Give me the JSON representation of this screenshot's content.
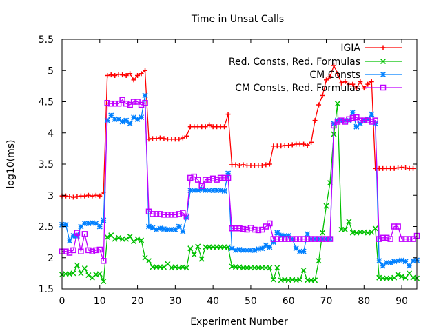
{
  "chart_data": {
    "type": "line",
    "title": "Time in Unsat Calls",
    "xlabel": "Experiment Number",
    "ylabel": "log10(ms)",
    "xlim": [
      0,
      94
    ],
    "ylim": [
      1.5,
      5.5
    ],
    "xticks": [
      0,
      10,
      20,
      30,
      40,
      50,
      60,
      70,
      80,
      90
    ],
    "yticks": [
      1.5,
      2,
      2.5,
      3,
      3.5,
      4,
      4.5,
      5,
      5.5
    ],
    "xtick_labels": [
      "0",
      "10",
      "20",
      "30",
      "40",
      "50",
      "60",
      "70",
      "80",
      "90"
    ],
    "ytick_labels": [
      "1.5",
      "2",
      "2.5",
      "3",
      "3.5",
      "4",
      "4.5",
      "5",
      "5.5"
    ],
    "grid": false,
    "legend_position": "top-right",
    "series": [
      {
        "name": "IGIA",
        "color": "#ff0000",
        "marker": "plus",
        "values": [
          2.99,
          2.99,
          2.98,
          2.97,
          2.98,
          2.99,
          2.99,
          3.0,
          2.99,
          3.0,
          2.99,
          3.05,
          4.92,
          4.93,
          4.92,
          4.94,
          4.93,
          4.92,
          4.95,
          4.85,
          4.92,
          4.95,
          5.0,
          3.9,
          3.91,
          3.91,
          3.92,
          3.91,
          3.9,
          3.9,
          3.9,
          3.9,
          3.92,
          3.95,
          4.1,
          4.1,
          4.1,
          4.1,
          4.1,
          4.13,
          4.1,
          4.1,
          4.1,
          4.1,
          4.3,
          3.49,
          3.49,
          3.48,
          3.49,
          3.48,
          3.48,
          3.48,
          3.48,
          3.48,
          3.49,
          3.5,
          3.79,
          3.79,
          3.79,
          3.8,
          3.8,
          3.81,
          3.82,
          3.82,
          3.82,
          3.8,
          3.85,
          4.2,
          4.45,
          4.6,
          4.85,
          4.9,
          5.08,
          4.95,
          4.8,
          4.82,
          4.78,
          4.78,
          4.72,
          4.82,
          4.72,
          4.78,
          4.82,
          3.43,
          3.43,
          3.43,
          3.43,
          3.43,
          3.43,
          3.44,
          3.45,
          3.44,
          3.43,
          3.43
        ]
      },
      {
        "name": "Red. Consts, Red. Formulas",
        "color": "#00c000",
        "marker": "x",
        "values": [
          1.73,
          1.74,
          1.74,
          1.75,
          1.88,
          1.75,
          1.83,
          1.72,
          1.68,
          1.73,
          1.74,
          1.62,
          2.33,
          2.36,
          2.3,
          2.32,
          2.3,
          2.3,
          2.34,
          2.26,
          2.3,
          2.28,
          2.0,
          1.95,
          1.85,
          1.85,
          1.85,
          1.85,
          1.9,
          1.84,
          1.85,
          1.84,
          1.85,
          1.84,
          2.15,
          2.05,
          2.18,
          1.98,
          2.17,
          2.17,
          2.17,
          2.17,
          2.17,
          2.17,
          2.17,
          1.86,
          1.85,
          1.85,
          1.84,
          1.84,
          1.84,
          1.84,
          1.84,
          1.84,
          1.84,
          1.84,
          1.65,
          1.84,
          1.64,
          1.65,
          1.64,
          1.65,
          1.64,
          1.65,
          1.8,
          1.64,
          1.64,
          1.64,
          1.95,
          2.4,
          2.83,
          3.2,
          3.98,
          4.47,
          2.45,
          2.45,
          2.58,
          2.4,
          2.4,
          2.41,
          2.41,
          2.4,
          2.41,
          2.47,
          1.68,
          1.67,
          1.67,
          1.67,
          1.68,
          1.73,
          1.7,
          1.68,
          1.75,
          1.68,
          1.67
        ]
      },
      {
        "name": "CM Consts",
        "color": "#0080ff",
        "marker": "star",
        "values": [
          2.53,
          2.53,
          2.27,
          2.35,
          2.35,
          2.5,
          2.55,
          2.55,
          2.56,
          2.55,
          2.5,
          2.6,
          4.2,
          4.28,
          4.22,
          4.22,
          4.18,
          4.2,
          4.15,
          4.25,
          4.22,
          4.25,
          4.6,
          2.5,
          2.48,
          2.45,
          2.47,
          2.46,
          2.45,
          2.45,
          2.45,
          2.5,
          2.42,
          2.65,
          3.08,
          3.08,
          3.08,
          3.1,
          3.08,
          3.08,
          3.08,
          3.08,
          3.08,
          3.07,
          3.35,
          2.15,
          2.12,
          2.13,
          2.12,
          2.12,
          2.12,
          2.12,
          2.14,
          2.15,
          2.2,
          2.17,
          2.25,
          2.4,
          2.36,
          2.35,
          2.35,
          2.3,
          2.15,
          2.1,
          2.1,
          2.38,
          2.3,
          2.3,
          2.3,
          2.3,
          2.3,
          2.3,
          4.15,
          4.2,
          4.2,
          4.2,
          4.2,
          4.33,
          4.1,
          4.15,
          4.2,
          4.22,
          4.3,
          4.15,
          1.95,
          1.87,
          1.92,
          1.92,
          1.94,
          1.95,
          1.96,
          1.94,
          1.87,
          1.95,
          1.96
        ]
      },
      {
        "name": "CM Consts, Red. Formulas",
        "color": "#c000ff",
        "marker": "square",
        "values": [
          2.1,
          2.1,
          2.08,
          2.12,
          2.4,
          2.1,
          2.38,
          2.12,
          2.1,
          2.12,
          2.13,
          1.95,
          4.48,
          4.47,
          4.47,
          4.47,
          4.53,
          4.47,
          4.45,
          4.5,
          4.5,
          4.45,
          4.48,
          2.74,
          2.7,
          2.7,
          2.7,
          2.69,
          2.69,
          2.69,
          2.69,
          2.7,
          2.72,
          2.66,
          3.28,
          3.3,
          3.25,
          3.15,
          3.25,
          3.25,
          3.27,
          3.25,
          3.28,
          3.28,
          3.28,
          2.47,
          2.47,
          2.47,
          2.46,
          2.45,
          2.48,
          2.45,
          2.44,
          2.45,
          2.5,
          2.55,
          2.3,
          2.3,
          2.3,
          2.3,
          2.3,
          2.3,
          2.3,
          2.3,
          2.3,
          2.3,
          2.3,
          2.3,
          2.3,
          2.3,
          2.3,
          2.3,
          4.12,
          4.18,
          4.2,
          4.18,
          4.22,
          4.24,
          4.25,
          4.2,
          4.2,
          4.2,
          4.18,
          4.2,
          2.3,
          2.32,
          2.32,
          2.3,
          2.5,
          2.5,
          2.3,
          2.3,
          2.3,
          2.3,
          2.35
        ]
      }
    ]
  }
}
